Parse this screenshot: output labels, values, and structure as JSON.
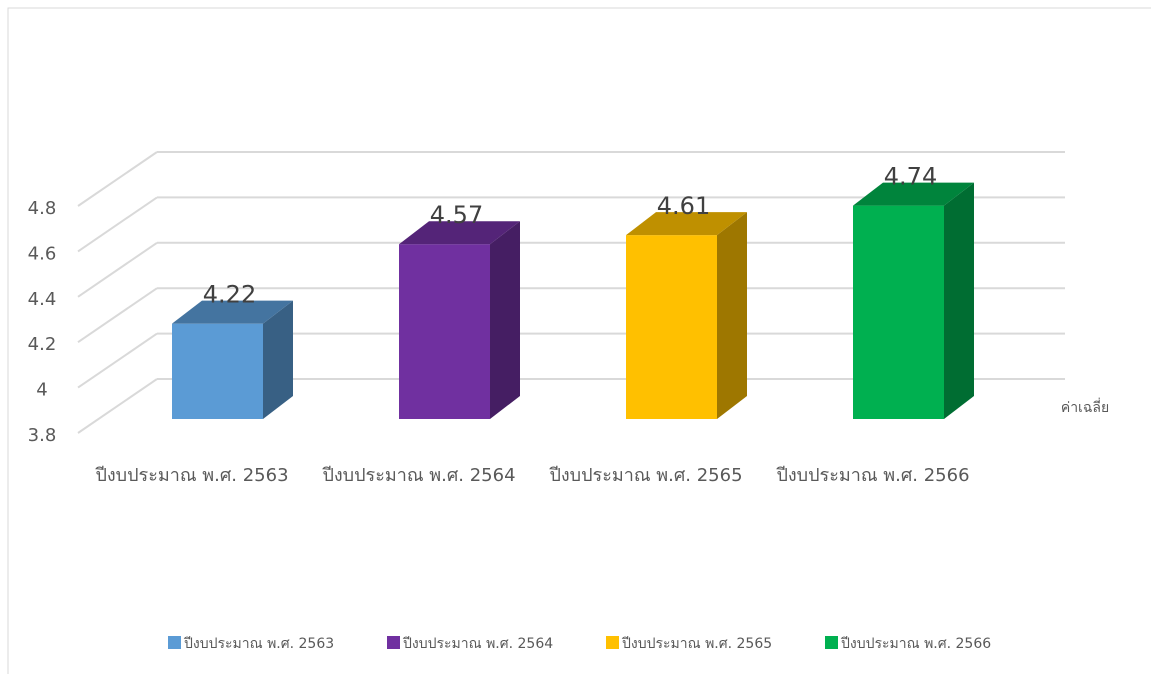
{
  "chart_data": {
    "type": "bar3d",
    "categories": [
      "ปีงบประมาณ พ.ศ. 2563",
      "ปีงบประมาณ พ.ศ. 2564",
      "ปีงบประมาณ พ.ศ. 2565",
      "ปีงบประมาณ พ.ศ. 2566"
    ],
    "series": [
      {
        "name": "ค่าเฉลี่ย",
        "values": [
          4.22,
          4.57,
          4.61,
          4.74
        ],
        "colors": [
          "#5b9bd5",
          "#7030a0",
          "#ffc000",
          "#00b050"
        ]
      }
    ],
    "ylim": [
      3.8,
      4.8
    ],
    "yticks": [
      3.8,
      4,
      4.2,
      4.4,
      4.6,
      4.8
    ],
    "grid": true,
    "legend": "bottom"
  }
}
